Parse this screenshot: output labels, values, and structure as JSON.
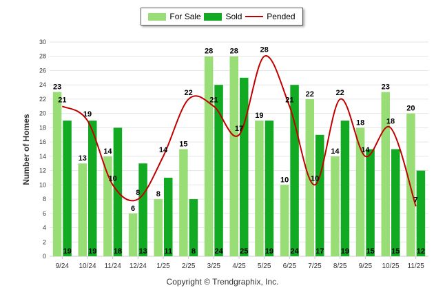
{
  "chart_data": {
    "type": "bar",
    "categories": [
      "9/24",
      "10/24",
      "11/24",
      "12/24",
      "1/25",
      "2/25",
      "3/25",
      "4/25",
      "5/25",
      "6/25",
      "7/25",
      "8/25",
      "9/25",
      "10/25",
      "11/25"
    ],
    "series": [
      {
        "name": "For Sale",
        "kind": "bar",
        "color": "#99dd77",
        "values": [
          23,
          13,
          14,
          6,
          8,
          15,
          28,
          28,
          19,
          10,
          22,
          14,
          18,
          23,
          20
        ]
      },
      {
        "name": "Sold",
        "kind": "bar",
        "color": "#11aa22",
        "values": [
          19,
          19,
          18,
          13,
          11,
          8,
          24,
          25,
          19,
          24,
          17,
          19,
          15,
          15,
          12
        ]
      },
      {
        "name": "Pended",
        "kind": "line",
        "color": "#c00000",
        "values": [
          21,
          19,
          10,
          8,
          14,
          22,
          21,
          17,
          28,
          21,
          10,
          22,
          14,
          18,
          7
        ]
      }
    ],
    "ylabel": "Number of Homes",
    "xlabel": "",
    "ylim": [
      0,
      30
    ],
    "yticks": [
      0,
      2,
      4,
      6,
      8,
      10,
      12,
      14,
      16,
      18,
      20,
      22,
      24,
      26,
      28,
      30
    ],
    "legend_position": "top-center",
    "grid": true
  },
  "footer": {
    "copyright": "Copyright © Trendgraphix, Inc."
  }
}
